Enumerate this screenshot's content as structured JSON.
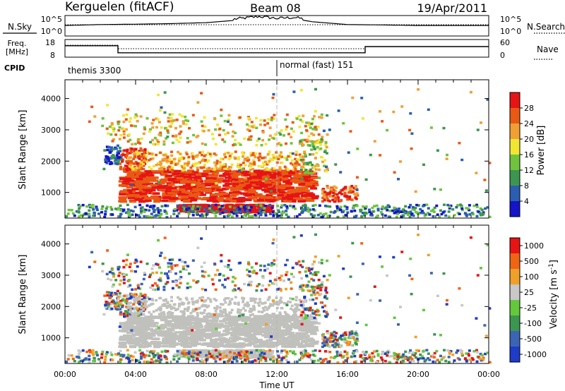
{
  "header": {
    "station": "Kerguelen (fitACF)",
    "beam": "Beam 08",
    "date": "19/Apr/2011"
  },
  "chart_data": [
    {
      "type": "line",
      "name": "sky-noise",
      "left_label": "N.Sky",
      "right_label": "N.Search",
      "left_ticks": [
        "10^5",
        "10^0"
      ],
      "right_ticks": [
        "10^5",
        "10^0"
      ],
      "x_hours": [
        0,
        2,
        4,
        6,
        8,
        10,
        11,
        12,
        13,
        14,
        16,
        18,
        20,
        22,
        24
      ],
      "sky_level": [
        0.55,
        0.6,
        0.62,
        0.65,
        0.7,
        0.85,
        0.95,
        0.85,
        0.9,
        0.75,
        0.6,
        0.58,
        0.55,
        0.55,
        0.55
      ]
    },
    {
      "type": "line",
      "name": "frequency-nave",
      "left_label_top": "Freq.",
      "left_label_bottom": "[MHz]",
      "right_label": "Nave",
      "left_ticks": [
        "18",
        "8"
      ],
      "right_ticks": [
        "60",
        "0"
      ],
      "freq_steps": [
        {
          "from": 0,
          "to": 3,
          "mhz": 14.5
        },
        {
          "from": 3,
          "to": 17,
          "mhz": 10.5
        },
        {
          "from": 17,
          "to": 24,
          "mhz": 14
        }
      ],
      "cpid_label": "CPID",
      "cpid_modes": [
        {
          "from": 0,
          "label": "themis 3300"
        },
        {
          "from": 12,
          "label": "normal (fast) 151"
        }
      ]
    },
    {
      "type": "heatmap",
      "name": "power",
      "ylabel": "Slant Range [km]",
      "yticks": [
        "1000",
        "2000",
        "3000",
        "4000"
      ],
      "ylim": [
        180,
        4600
      ],
      "colorbar_label": "Power [dB]",
      "colorbar_ticks": [
        "4",
        "8",
        "12",
        "16",
        "20",
        "24",
        "28"
      ],
      "colorbar_range": [
        0,
        30
      ],
      "colors": [
        "#1414c8",
        "#2a5fb0",
        "#3c9650",
        "#6fc43c",
        "#f0e632",
        "#f0a032",
        "#e85a14",
        "#e61414"
      ]
    },
    {
      "type": "heatmap",
      "name": "velocity",
      "ylabel": "Slant Range [km]",
      "yticks": [
        "1000",
        "2000",
        "3000",
        "4000"
      ],
      "ylim": [
        180,
        4600
      ],
      "colorbar_label": "Velocity [m s",
      "colorbar_label_sup": "-1",
      "colorbar_label_end": "]",
      "colorbar_ticks": [
        "1000",
        "500",
        "100",
        "25",
        "-25",
        "-100",
        "-500",
        "-1000"
      ],
      "colors": [
        "#1e3cc8",
        "#3c64b4",
        "#3c9650",
        "#64c83c",
        "#c8c8c8",
        "#f0a028",
        "#f06414",
        "#e61414"
      ],
      "ground_scatter_color": "#c0c0bc"
    }
  ],
  "x_axis": {
    "label": "Time UT",
    "ticks": [
      "00:00",
      "04:00",
      "08:00",
      "12:00",
      "16:00",
      "20:00",
      "00:00"
    ],
    "range_hours": [
      0,
      24
    ]
  }
}
